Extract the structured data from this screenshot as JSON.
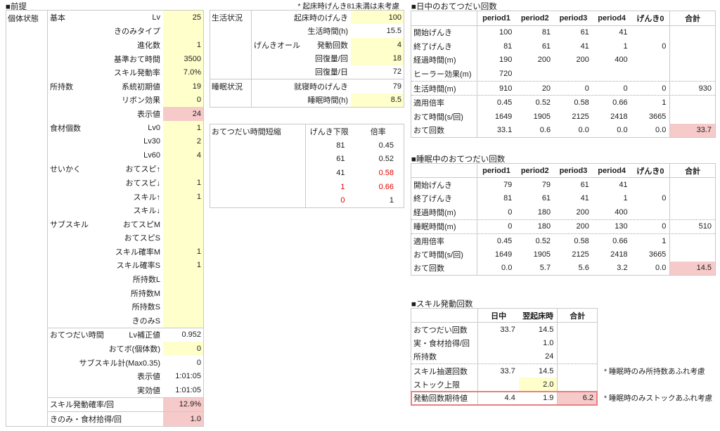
{
  "colors": {
    "input_fill": "#ffffcc",
    "result_fill": "#f7caca",
    "red_text": "#dd0000",
    "red_border": "#e8807f",
    "grid_border": "#c9c9c9"
  },
  "notes": {
    "top": "* 起床時げんき81未満は未考慮"
  },
  "left": {
    "title": "■前提",
    "row_header": "個体状態",
    "rows": [
      {
        "group": "基本",
        "label": "Lv",
        "value": "25",
        "fill": "yellow"
      },
      {
        "label": "きのみタイプ",
        "value": "",
        "fill": "yellow"
      },
      {
        "label": "進化数",
        "value": "1",
        "fill": "yellow"
      },
      {
        "label": "基準おて時間",
        "value": "3500",
        "fill": "yellow"
      },
      {
        "label": "スキル発動率",
        "value": "7.0%",
        "fill": "yellow"
      },
      {
        "group": "所持数",
        "label": "系統初期値",
        "value": "19",
        "fill": "yellow"
      },
      {
        "label": "リボン効果",
        "value": "0",
        "fill": "yellow"
      },
      {
        "label": "表示値",
        "value": "24",
        "fill": "pink"
      },
      {
        "group": "食材個数",
        "label": "Lv0",
        "value": "1",
        "fill": "yellow"
      },
      {
        "label": "Lv30",
        "value": "2",
        "fill": "yellow"
      },
      {
        "label": "Lv60",
        "value": "4",
        "fill": "yellow"
      },
      {
        "group": "せいかく",
        "label": "おてスピ↑",
        "value": "",
        "fill": "yellow"
      },
      {
        "label": "おてスピ↓",
        "value": "1",
        "fill": "yellow"
      },
      {
        "label": "スキル↑",
        "value": "1",
        "fill": "yellow"
      },
      {
        "label": "スキル↓",
        "value": "",
        "fill": "yellow"
      },
      {
        "group": "サブスキル",
        "label": "おてスピM",
        "value": "",
        "fill": "yellow"
      },
      {
        "label": "おてスピS",
        "value": "",
        "fill": "yellow"
      },
      {
        "label": "スキル確率M",
        "value": "1",
        "fill": "yellow"
      },
      {
        "label": "スキル確率S",
        "value": "1",
        "fill": "yellow"
      },
      {
        "label": "所持数L",
        "value": "",
        "fill": "yellow"
      },
      {
        "label": "所持数M",
        "value": "",
        "fill": "yellow"
      },
      {
        "label": "所持数S",
        "value": "",
        "fill": "yellow"
      },
      {
        "label": "きのみS",
        "value": "",
        "fill": "yellow"
      },
      {
        "group": "おてつだい時間",
        "label": "Lv補正値",
        "value": "0.952",
        "fill": "",
        "top_border": true
      },
      {
        "label": "おてボ(個体数)",
        "value": "0",
        "fill": "yellow"
      },
      {
        "label": "サブスキル計(Max0.35)",
        "value": "0",
        "fill": ""
      },
      {
        "label": "表示値",
        "value": "1:01:05",
        "fill": ""
      },
      {
        "label": "実効値",
        "value": "1:01:05",
        "fill": ""
      },
      {
        "label": "スキル発動確率/回",
        "value": "12.9%",
        "fill": "pink",
        "top_border": true,
        "wide": true
      },
      {
        "label": "きのみ・食材拾得/回",
        "value": "1.0",
        "fill": "pink",
        "top_border": true,
        "wide": true
      }
    ]
  },
  "life": {
    "rows": [
      {
        "section": "生活状況",
        "label": "起床時のげんき",
        "value": "100",
        "fill": "yellow"
      },
      {
        "label": "生活時間(h)",
        "value": "15.5",
        "fill": ""
      },
      {
        "group": "げんきオール",
        "label": "発動回数",
        "value": "4",
        "fill": "yellow"
      },
      {
        "label": "回復量/回",
        "value": "18",
        "fill": "yellow"
      },
      {
        "label": "回復量/日",
        "value": "72",
        "fill": ""
      },
      {
        "section": "睡眠状況",
        "label": "就寝時のげんき",
        "value": "79",
        "fill": "",
        "divider": true
      },
      {
        "label": "睡眠時間(h)",
        "value": "8.5",
        "fill": "yellow"
      }
    ]
  },
  "shorten": {
    "title": "おてつだい時間短縮",
    "col1": "げんき下限",
    "col2": "倍率",
    "rows": [
      {
        "limit": "81",
        "limit_red": false,
        "mult": "0.45",
        "mult_red": false
      },
      {
        "limit": "61",
        "limit_red": false,
        "mult": "0.52",
        "mult_red": false
      },
      {
        "limit": "41",
        "limit_red": false,
        "mult": "0.58",
        "mult_red": true
      },
      {
        "limit": "1",
        "limit_red": true,
        "mult": "0.66",
        "mult_red": true
      },
      {
        "limit": "0",
        "limit_red": true,
        "mult": "1",
        "mult_red": false
      }
    ]
  },
  "day": {
    "title": "■日中のおてつだい回数",
    "columns": [
      "period1",
      "period2",
      "period3",
      "period4",
      "げんき0",
      "合計"
    ],
    "rows": [
      {
        "label": "開始げんき",
        "cells": [
          "100",
          "81",
          "61",
          "41",
          "",
          ""
        ]
      },
      {
        "label": "終了げんき",
        "cells": [
          "81",
          "61",
          "41",
          "1",
          "0",
          ""
        ]
      },
      {
        "label": "経過時間(m)",
        "cells": [
          "190",
          "200",
          "200",
          "400",
          "",
          ""
        ]
      },
      {
        "label": "ヒーラー効果(m)",
        "cells": [
          "720",
          "",
          "",
          "",
          "",
          ""
        ]
      },
      {
        "label": "生活時間(m)",
        "cells": [
          "910",
          "20",
          "0",
          "0",
          "0",
          "930"
        ],
        "dotted": true
      },
      {
        "label": "適用倍率",
        "cells": [
          "0.45",
          "0.52",
          "0.58",
          "0.66",
          "1",
          ""
        ]
      },
      {
        "label": "おて時間(s/回)",
        "cells": [
          "1649",
          "1905",
          "2125",
          "2418",
          "3665",
          ""
        ]
      },
      {
        "label": "おて回数",
        "cells": [
          "33.1",
          "0.6",
          "0.0",
          "0.0",
          "0.0",
          "33.7"
        ],
        "pink_total": true
      }
    ]
  },
  "sleep": {
    "title": "■睡眠中のおてつだい回数",
    "columns": [
      "period1",
      "period2",
      "period3",
      "period4",
      "げんき0",
      "合計"
    ],
    "rows": [
      {
        "label": "開始げんき",
        "cells": [
          "79",
          "79",
          "61",
          "41",
          "",
          ""
        ]
      },
      {
        "label": "終了げんき",
        "cells": [
          "81",
          "61",
          "41",
          "1",
          "0",
          ""
        ]
      },
      {
        "label": "経過時間(m)",
        "cells": [
          "0",
          "180",
          "200",
          "400",
          "",
          ""
        ]
      },
      {
        "label": "睡眠時間(m)",
        "cells": [
          "0",
          "180",
          "200",
          "130",
          "0",
          "510"
        ],
        "dotted": true
      },
      {
        "label": "適用倍率",
        "cells": [
          "0.45",
          "0.52",
          "0.58",
          "0.66",
          "1",
          ""
        ]
      },
      {
        "label": "おて時間(s/回)",
        "cells": [
          "1649",
          "1905",
          "2125",
          "2418",
          "3665",
          ""
        ]
      },
      {
        "label": "おて回数",
        "cells": [
          "0.0",
          "5.7",
          "5.6",
          "3.2",
          "0.0",
          "14.5"
        ],
        "pink_total": true
      }
    ]
  },
  "skill": {
    "title": "■スキル発動回数",
    "columns": [
      "日中",
      "翌起床時",
      "合計"
    ],
    "rows": [
      {
        "label": "おてつだい回数",
        "cells": [
          "33.7",
          "14.5",
          ""
        ]
      },
      {
        "label": "実・食材拾得/回",
        "cells": [
          "",
          "1.0",
          ""
        ]
      },
      {
        "label": "所持数",
        "cells": [
          "",
          "24",
          ""
        ]
      },
      {
        "label": "スキル抽選回数",
        "cells": [
          "33.7",
          "14.5",
          ""
        ],
        "dotted_top": true,
        "note": "* 睡眠時のみ所持数あふれ考慮"
      },
      {
        "label": "ストック上限",
        "cells": [
          "",
          "2.0",
          ""
        ],
        "cell2_yellow": true
      },
      {
        "label": "発動回数期待値",
        "cells": [
          "4.4",
          "1.9",
          "6.2"
        ],
        "redbox": true,
        "pink_total": true,
        "note": "* 睡眠時のみストックあふれ考慮"
      }
    ]
  }
}
